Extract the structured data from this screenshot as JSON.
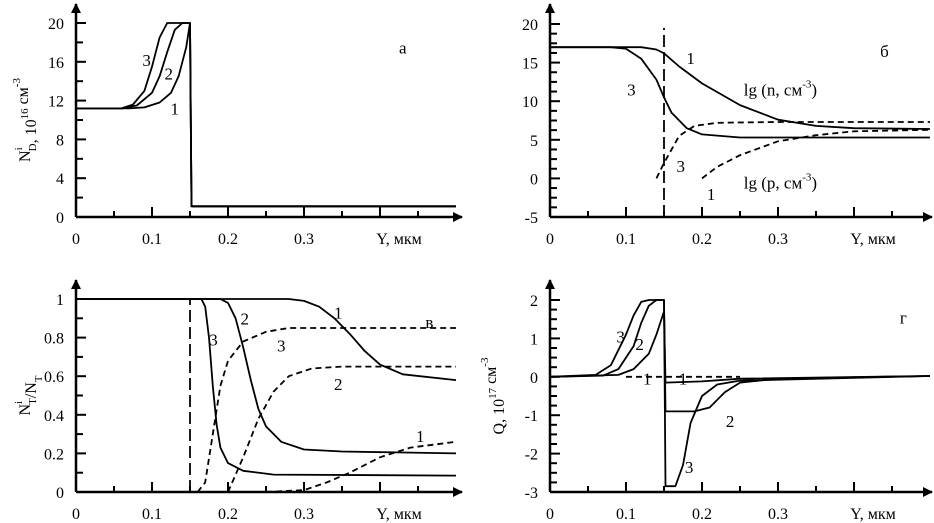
{
  "chart_data": [
    {
      "id": "a",
      "type": "line",
      "panel_label": "а",
      "xlabel": "Y, мкм",
      "ylabel": {
        "base": "N",
        "sub": "D",
        "sup": "i",
        "rest": ", 10",
        "exp": "16",
        "unit": " см",
        "unit_exp": "-3"
      },
      "xlim": [
        0,
        0.5
      ],
      "ylim": [
        0,
        20
      ],
      "xticks": [
        "0",
        "0.1",
        "0.2",
        "0.3"
      ],
      "xtick_values": [
        0,
        0.1,
        0.2,
        0.3
      ],
      "xminor": 0.05,
      "yticks": [
        "0",
        "4",
        "8",
        "12",
        "16",
        "20"
      ],
      "ytick_values": [
        0,
        4,
        8,
        12,
        16,
        20
      ],
      "yminor": 2,
      "series": [
        {
          "label": "1",
          "style": "solid",
          "points": [
            [
              0,
              11.2
            ],
            [
              0.07,
              11.2
            ],
            [
              0.09,
              11.3
            ],
            [
              0.11,
              11.8
            ],
            [
              0.125,
              12.8
            ],
            [
              0.135,
              14.5
            ],
            [
              0.145,
              17.5
            ],
            [
              0.15,
              20
            ],
            [
              0.152,
              1.1
            ],
            [
              0.5,
              1.1
            ]
          ]
        },
        {
          "label": "2",
          "style": "solid",
          "points": [
            [
              0,
              11.2
            ],
            [
              0.06,
              11.2
            ],
            [
              0.08,
              11.5
            ],
            [
              0.1,
              12.8
            ],
            [
              0.11,
              14.5
            ],
            [
              0.12,
              17
            ],
            [
              0.13,
              19.3
            ],
            [
              0.14,
              20
            ],
            [
              0.15,
              20
            ],
            [
              0.152,
              1.1
            ],
            [
              0.5,
              1.1
            ]
          ]
        },
        {
          "label": "3",
          "style": "solid",
          "points": [
            [
              0,
              11.2
            ],
            [
              0.06,
              11.2
            ],
            [
              0.075,
              11.6
            ],
            [
              0.09,
              13
            ],
            [
              0.1,
              15.5
            ],
            [
              0.11,
              18.5
            ],
            [
              0.12,
              20
            ],
            [
              0.15,
              20
            ],
            [
              0.152,
              1.1
            ],
            [
              0.5,
              1.1
            ]
          ]
        }
      ],
      "annotations": [
        {
          "text": "1",
          "x": 0.13,
          "y": 11.2
        },
        {
          "text": "2",
          "x": 0.122,
          "y": 14.8
        },
        {
          "text": "3",
          "x": 0.093,
          "y": 16.2
        },
        {
          "text": "а",
          "x": 0.43,
          "y": 17.5
        }
      ]
    },
    {
      "id": "b",
      "type": "line",
      "panel_label": "б",
      "xlabel": "Y, мкм",
      "xlim": [
        0,
        0.5
      ],
      "ylim": [
        -5,
        20
      ],
      "xticks": [
        "0",
        "0.1",
        "0.2",
        "0.3"
      ],
      "xtick_values": [
        0,
        0.1,
        0.2,
        0.3
      ],
      "xminor": 0.05,
      "yticks": [
        "-5",
        "0",
        "5",
        "10",
        "15",
        "20"
      ],
      "ytick_values": [
        -5,
        0,
        5,
        10,
        15,
        20
      ],
      "yminor": 1.25,
      "vline": {
        "x": 0.15,
        "y": [
          -5,
          19.5
        ]
      },
      "series": [
        {
          "label": "1",
          "quantity": "lg (n, см-3)",
          "style": "solid",
          "points": [
            [
              0,
              17
            ],
            [
              0.12,
              17
            ],
            [
              0.14,
              16.7
            ],
            [
              0.15,
              16.2
            ],
            [
              0.17,
              14.5
            ],
            [
              0.2,
              12.3
            ],
            [
              0.25,
              9.5
            ],
            [
              0.3,
              7.6
            ],
            [
              0.35,
              6.8
            ],
            [
              0.4,
              6.5
            ],
            [
              0.5,
              6.4
            ]
          ]
        },
        {
          "label": "3",
          "quantity": "lg (n, см-3)",
          "style": "solid",
          "points": [
            [
              0,
              17
            ],
            [
              0.08,
              17
            ],
            [
              0.1,
              16.8
            ],
            [
              0.12,
              15.5
            ],
            [
              0.14,
              12.8
            ],
            [
              0.15,
              10.5
            ],
            [
              0.16,
              8.5
            ],
            [
              0.18,
              6.5
            ],
            [
              0.2,
              5.7
            ],
            [
              0.25,
              5.3
            ],
            [
              0.5,
              5.3
            ]
          ]
        },
        {
          "label": "3",
          "quantity": "lg (p, см-3)",
          "style": "dashed",
          "points": [
            [
              0.14,
              0
            ],
            [
              0.15,
              2
            ],
            [
              0.17,
              5.5
            ],
            [
              0.19,
              6.8
            ],
            [
              0.22,
              7.2
            ],
            [
              0.3,
              7.3
            ],
            [
              0.5,
              7.3
            ]
          ]
        },
        {
          "label": "1",
          "quantity": "lg (p, см-3)",
          "style": "dashed",
          "points": [
            [
              0.2,
              0
            ],
            [
              0.22,
              1.5
            ],
            [
              0.25,
              3
            ],
            [
              0.3,
              4.8
            ],
            [
              0.35,
              5.6
            ],
            [
              0.4,
              6.1
            ],
            [
              0.5,
              6.3
            ]
          ]
        }
      ],
      "annotations": [
        {
          "text": "1",
          "x": 0.185,
          "y": 15.6
        },
        {
          "text": "3",
          "x": 0.107,
          "y": 11.5
        },
        {
          "text": "3",
          "x": 0.172,
          "y": 1.6
        },
        {
          "text": "1",
          "x": 0.212,
          "y": -2.0
        },
        {
          "text": "б",
          "x": 0.44,
          "y": 16.5
        }
      ],
      "labels": [
        {
          "base": "lg (n, см",
          "sup": "-3",
          "end": ")",
          "x": 0.255,
          "y": 11.5
        },
        {
          "base": "lg (p, см",
          "sup": "-3",
          "end": ")",
          "x": 0.255,
          "y": -0.5
        }
      ]
    },
    {
      "id": "c",
      "type": "line",
      "panel_label": "в",
      "xlabel": "Y, мкм",
      "ylabel": {
        "base": "N",
        "sub": "T",
        "sup": "i",
        "rest": "/N",
        "sub2": "T"
      },
      "xlim": [
        0,
        0.5
      ],
      "ylim": [
        0,
        1
      ],
      "xticks": [
        "0",
        "0.1",
        "0.2",
        "0.3"
      ],
      "xtick_values": [
        0,
        0.1,
        0.2,
        0.3
      ],
      "xminor": 0.05,
      "yticks": [
        "0",
        "0.2",
        "0.4",
        "0.6",
        "0.8",
        "1"
      ],
      "ytick_values": [
        0,
        0.2,
        0.4,
        0.6,
        0.8,
        1
      ],
      "yminor": 0.1,
      "vline": {
        "x": 0.15,
        "y": [
          0,
          1
        ]
      },
      "series": [
        {
          "label": "1",
          "style": "solid",
          "points": [
            [
              0,
              1
            ],
            [
              0.28,
              1
            ],
            [
              0.3,
              0.99
            ],
            [
              0.32,
              0.96
            ],
            [
              0.34,
              0.9
            ],
            [
              0.36,
              0.82
            ],
            [
              0.38,
              0.73
            ],
            [
              0.4,
              0.66
            ],
            [
              0.43,
              0.61
            ],
            [
              0.5,
              0.58
            ]
          ]
        },
        {
          "label": "2",
          "style": "solid",
          "points": [
            [
              0,
              1
            ],
            [
              0.19,
              1
            ],
            [
              0.2,
              0.98
            ],
            [
              0.21,
              0.9
            ],
            [
              0.22,
              0.75
            ],
            [
              0.23,
              0.58
            ],
            [
              0.24,
              0.43
            ],
            [
              0.25,
              0.34
            ],
            [
              0.27,
              0.26
            ],
            [
              0.3,
              0.22
            ],
            [
              0.35,
              0.21
            ],
            [
              0.5,
              0.2
            ]
          ]
        },
        {
          "label": "3",
          "style": "solid",
          "points": [
            [
              0,
              1
            ],
            [
              0.165,
              1
            ],
            [
              0.17,
              0.96
            ],
            [
              0.175,
              0.8
            ],
            [
              0.18,
              0.55
            ],
            [
              0.185,
              0.35
            ],
            [
              0.19,
              0.23
            ],
            [
              0.2,
              0.15
            ],
            [
              0.22,
              0.11
            ],
            [
              0.26,
              0.09
            ],
            [
              0.5,
              0.085
            ]
          ]
        },
        {
          "label": "3",
          "style": "dashed",
          "points": [
            [
              0.16,
              0
            ],
            [
              0.17,
              0.05
            ],
            [
              0.18,
              0.3
            ],
            [
              0.19,
              0.55
            ],
            [
              0.2,
              0.68
            ],
            [
              0.22,
              0.78
            ],
            [
              0.25,
              0.83
            ],
            [
              0.28,
              0.85
            ],
            [
              0.5,
              0.85
            ]
          ]
        },
        {
          "label": "2",
          "style": "dashed",
          "points": [
            [
              0.2,
              0
            ],
            [
              0.22,
              0.18
            ],
            [
              0.24,
              0.38
            ],
            [
              0.26,
              0.52
            ],
            [
              0.28,
              0.6
            ],
            [
              0.31,
              0.64
            ],
            [
              0.35,
              0.65
            ],
            [
              0.5,
              0.65
            ]
          ]
        },
        {
          "label": "1",
          "style": "dashed",
          "points": [
            [
              0.25,
              0
            ],
            [
              0.3,
              0.01
            ],
            [
              0.33,
              0.05
            ],
            [
              0.36,
              0.1
            ],
            [
              0.4,
              0.18
            ],
            [
              0.44,
              0.23
            ],
            [
              0.5,
              0.26
            ]
          ]
        }
      ],
      "annotations": [
        {
          "text": "1",
          "x": 0.345,
          "y": 0.93
        },
        {
          "text": "2",
          "x": 0.222,
          "y": 0.9
        },
        {
          "text": "3",
          "x": 0.181,
          "y": 0.79
        },
        {
          "text": "3",
          "x": 0.27,
          "y": 0.76
        },
        {
          "text": "2",
          "x": 0.345,
          "y": 0.56
        },
        {
          "text": "1",
          "x": 0.453,
          "y": 0.29
        },
        {
          "text": "в",
          "x": 0.465,
          "y": 0.88
        }
      ]
    },
    {
      "id": "d",
      "type": "line",
      "panel_label": "г",
      "xlabel": "Y, мкм",
      "ylabel": {
        "base": "Q, 10",
        "exp": "17",
        "unit": " см",
        "unit_exp": "-3"
      },
      "xlim": [
        0,
        0.5
      ],
      "ylim": [
        -3,
        2
      ],
      "xticks": [
        "0",
        "0.1",
        "0.2",
        "0.3"
      ],
      "xtick_values": [
        0,
        0.1,
        0.2,
        0.3
      ],
      "xminor": 0.05,
      "yticks": [
        "-3",
        "-2",
        "-1",
        "0",
        "1",
        "2"
      ],
      "ytick_values": [
        -3,
        -2,
        -1,
        0,
        1,
        2
      ],
      "yminor": 0.25,
      "series": [
        {
          "label": "1",
          "style": "solid",
          "points": [
            [
              0,
              0
            ],
            [
              0.09,
              0.05
            ],
            [
              0.11,
              0.2
            ],
            [
              0.13,
              0.6
            ],
            [
              0.14,
              1.1
            ],
            [
              0.15,
              1.7
            ],
            [
              0.152,
              -0.15
            ],
            [
              0.2,
              -0.12
            ],
            [
              0.25,
              -0.05
            ],
            [
              0.5,
              0.02
            ]
          ]
        },
        {
          "label": "2",
          "style": "solid",
          "points": [
            [
              0,
              0
            ],
            [
              0.07,
              0.03
            ],
            [
              0.09,
              0.2
            ],
            [
              0.11,
              0.8
            ],
            [
              0.12,
              1.4
            ],
            [
              0.13,
              1.85
            ],
            [
              0.14,
              2
            ],
            [
              0.15,
              2
            ],
            [
              0.152,
              -0.9
            ],
            [
              0.19,
              -0.9
            ],
            [
              0.21,
              -0.8
            ],
            [
              0.23,
              -0.4
            ],
            [
              0.25,
              -0.15
            ],
            [
              0.3,
              -0.05
            ],
            [
              0.5,
              0.02
            ]
          ]
        },
        {
          "label": "3",
          "style": "solid",
          "points": [
            [
              0,
              0
            ],
            [
              0.06,
              0.05
            ],
            [
              0.08,
              0.3
            ],
            [
              0.1,
              1.1
            ],
            [
              0.11,
              1.6
            ],
            [
              0.12,
              1.95
            ],
            [
              0.13,
              2
            ],
            [
              0.15,
              2
            ],
            [
              0.152,
              -2.85
            ],
            [
              0.165,
              -2.85
            ],
            [
              0.175,
              -2.3
            ],
            [
              0.185,
              -1.2
            ],
            [
              0.2,
              -0.5
            ],
            [
              0.22,
              -0.2
            ],
            [
              0.25,
              -0.1
            ],
            [
              0.5,
              0.02
            ]
          ]
        },
        {
          "label": "1",
          "style": "dashed",
          "points": [
            [
              0.1,
              0
            ],
            [
              0.25,
              0
            ]
          ]
        }
      ],
      "annotations": [
        {
          "text": "1",
          "x": 0.128,
          "y": -0.05
        },
        {
          "text": "1",
          "x": 0.175,
          "y": -0.05
        },
        {
          "text": "2",
          "x": 0.118,
          "y": 0.85
        },
        {
          "text": "3",
          "x": 0.093,
          "y": 1.05
        },
        {
          "text": "2",
          "x": 0.237,
          "y": -1.15
        },
        {
          "text": "3",
          "x": 0.183,
          "y": -2.35
        },
        {
          "text": "г",
          "x": 0.465,
          "y": 1.55
        }
      ]
    }
  ]
}
